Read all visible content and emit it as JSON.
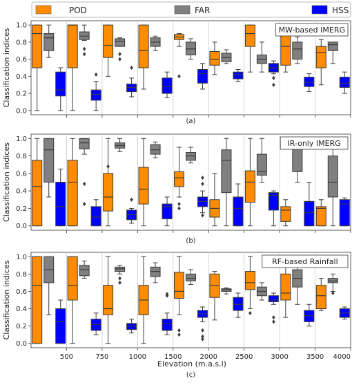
{
  "legend": {
    "items": [
      {
        "name": "POD",
        "color": "#ff8c00"
      },
      {
        "name": "FAR",
        "color": "#808080"
      },
      {
        "name": "HSS",
        "color": "#0000ff"
      }
    ],
    "placement": "top"
  },
  "xlabel": "Elevation (m.a.s.l)",
  "xticks": [
    "500",
    "750",
    "1000",
    "1500",
    "2000",
    "2500",
    "3000",
    "3500",
    "4000"
  ],
  "chart_data": [
    {
      "type": "box",
      "title": "MW-based IMERG",
      "caption": "(a)",
      "ylabel": "Classification indices",
      "ylim": [
        -0.05,
        1.05
      ],
      "yticks": [
        0.0,
        0.2,
        0.4,
        0.6,
        0.8,
        1.0
      ],
      "groups": [
        {
          "POD": {
            "min": 0.0,
            "q1": 0.5,
            "med": 0.9,
            "q3": 1.0,
            "max": 1.0,
            "out": []
          },
          "FAR": {
            "min": 0.62,
            "q1": 0.7,
            "med": 0.85,
            "q3": 0.9,
            "max": 1.0,
            "out": []
          },
          "HSS": {
            "min": 0.0,
            "q1": 0.17,
            "med": 0.24,
            "q3": 0.45,
            "max": 0.5,
            "out": []
          }
        },
        {
          "POD": {
            "min": 0.0,
            "q1": 0.5,
            "med": 1.0,
            "q3": 1.0,
            "max": 1.0,
            "out": []
          },
          "FAR": {
            "min": 0.82,
            "q1": 0.83,
            "med": 0.87,
            "q3": 0.92,
            "max": 1.0,
            "out": [
              0.72,
              0.66
            ]
          },
          "HSS": {
            "min": 0.0,
            "q1": 0.12,
            "med": 0.19,
            "q3": 0.24,
            "max": 0.34,
            "out": [
              0.42
            ]
          }
        },
        {
          "POD": {
            "min": 0.4,
            "q1": 0.62,
            "med": 0.76,
            "q3": 1.0,
            "max": 1.0,
            "out": []
          },
          "FAR": {
            "min": 0.75,
            "q1": 0.75,
            "med": 0.81,
            "q3": 0.84,
            "max": 0.85,
            "out": [
              0.66,
              0.6
            ]
          },
          "HSS": {
            "min": 0.16,
            "q1": 0.22,
            "med": 0.27,
            "q3": 0.31,
            "max": 0.38,
            "out": [
              0.5
            ]
          }
        },
        {
          "POD": {
            "min": 0.25,
            "q1": 0.5,
            "med": 0.7,
            "q3": 1.0,
            "max": 1.0,
            "out": []
          },
          "FAR": {
            "min": 0.7,
            "q1": 0.75,
            "med": 0.8,
            "q3": 0.85,
            "max": 0.87,
            "out": []
          },
          "HSS": {
            "min": 0.15,
            "q1": 0.2,
            "med": 0.28,
            "q3": 0.38,
            "max": 0.45,
            "out": []
          }
        },
        {
          "POD": {
            "min": 0.75,
            "q1": 0.83,
            "med": 0.86,
            "q3": 0.89,
            "max": 0.9,
            "out": [
              0.4
            ]
          },
          "FAR": {
            "min": 0.6,
            "q1": 0.65,
            "med": 0.72,
            "q3": 0.8,
            "max": 0.84,
            "out": []
          },
          "HSS": {
            "min": 0.25,
            "q1": 0.32,
            "med": 0.43,
            "q3": 0.48,
            "max": 0.55,
            "out": []
          }
        },
        {
          "POD": {
            "min": 0.42,
            "q1": 0.53,
            "med": 0.6,
            "q3": 0.69,
            "max": 0.8,
            "out": []
          },
          "FAR": {
            "min": 0.55,
            "q1": 0.57,
            "med": 0.62,
            "q3": 0.67,
            "max": 0.71,
            "out": []
          },
          "HSS": {
            "min": 0.34,
            "q1": 0.37,
            "med": 0.42,
            "q3": 0.45,
            "max": 0.48,
            "out": []
          }
        },
        {
          "POD": {
            "min": 0.45,
            "q1": 0.75,
            "med": 0.9,
            "q3": 1.0,
            "max": 1.0,
            "out": []
          },
          "FAR": {
            "min": 0.45,
            "q1": 0.55,
            "med": 0.6,
            "q3": 0.65,
            "max": 0.8,
            "out": []
          },
          "HSS": {
            "min": 0.43,
            "q1": 0.45,
            "med": 0.5,
            "q3": 0.55,
            "max": 0.58,
            "out": [
              0.38,
              0.3
            ]
          }
        },
        {
          "POD": {
            "min": 0.45,
            "q1": 0.53,
            "med": 0.75,
            "q3": 0.9,
            "max": 1.0,
            "out": []
          },
          "FAR": {
            "min": 0.55,
            "q1": 0.6,
            "med": 0.72,
            "q3": 0.8,
            "max": 0.86,
            "out": []
          },
          "HSS": {
            "min": 0.22,
            "q1": 0.28,
            "med": 0.33,
            "q3": 0.39,
            "max": 0.43,
            "out": []
          }
        },
        {
          "POD": {
            "min": 0.3,
            "q1": 0.5,
            "med": 0.68,
            "q3": 0.75,
            "max": 0.83,
            "out": []
          },
          "FAR": {
            "min": 0.55,
            "q1": 0.7,
            "med": 0.77,
            "q3": 0.8,
            "max": 0.8,
            "out": []
          },
          "HSS": {
            "min": 0.2,
            "q1": 0.27,
            "med": 0.32,
            "q3": 0.39,
            "max": 0.45,
            "out": []
          }
        }
      ]
    },
    {
      "type": "box",
      "title": "IR-only IMERG",
      "caption": "(b)",
      "ylabel": "Classification indices",
      "ylim": [
        -0.05,
        1.05
      ],
      "yticks": [
        0.0,
        0.2,
        0.4,
        0.6,
        0.8,
        1.0
      ],
      "groups": [
        {
          "POD": {
            "min": 0.0,
            "q1": 0.0,
            "med": 0.45,
            "q3": 0.75,
            "max": 1.0,
            "out": []
          },
          "FAR": {
            "min": 0.33,
            "q1": 0.5,
            "med": 0.87,
            "q3": 1.0,
            "max": 1.0,
            "out": []
          },
          "HSS": {
            "min": 0.0,
            "q1": 0.0,
            "med": 0.22,
            "q3": 0.5,
            "max": 0.65,
            "out": []
          }
        },
        {
          "POD": {
            "min": 0.0,
            "q1": 0.0,
            "med": 0.5,
            "q3": 0.75,
            "max": 1.0,
            "out": []
          },
          "FAR": {
            "min": 0.82,
            "q1": 0.88,
            "med": 0.95,
            "q3": 1.0,
            "max": 1.0,
            "out": [
              0.48,
              0.25
            ]
          },
          "HSS": {
            "min": 0.0,
            "q1": 0.0,
            "med": 0.1,
            "q3": 0.22,
            "max": 0.3,
            "out": []
          }
        },
        {
          "POD": {
            "min": 0.0,
            "q1": 0.17,
            "med": 0.33,
            "q3": 0.6,
            "max": 1.0,
            "out": [
              0.68
            ]
          },
          "FAR": {
            "min": 0.85,
            "q1": 0.89,
            "med": 0.92,
            "q3": 0.95,
            "max": 1.0,
            "out": []
          },
          "HSS": {
            "min": 0.03,
            "q1": 0.07,
            "med": 0.13,
            "q3": 0.18,
            "max": 0.2,
            "out": [
              0.3
            ]
          }
        },
        {
          "POD": {
            "min": 0.0,
            "q1": 0.25,
            "med": 0.42,
            "q3": 0.67,
            "max": 1.0,
            "out": []
          },
          "FAR": {
            "min": 0.78,
            "q1": 0.82,
            "med": 0.87,
            "q3": 0.93,
            "max": 0.96,
            "out": []
          },
          "HSS": {
            "min": 0.0,
            "q1": 0.08,
            "med": 0.22,
            "q3": 0.25,
            "max": 0.33,
            "out": []
          }
        },
        {
          "POD": {
            "min": 0.33,
            "q1": 0.45,
            "med": 0.55,
            "q3": 0.62,
            "max": 0.9,
            "out": [
              0.25,
              0.2
            ]
          },
          "FAR": {
            "min": 0.72,
            "q1": 0.75,
            "med": 0.8,
            "q3": 0.84,
            "max": 0.9,
            "out": []
          },
          "HSS": {
            "min": 0.15,
            "q1": 0.22,
            "med": 0.28,
            "q3": 0.33,
            "max": 0.4,
            "out": [
              0.48,
              0.55,
              0.12
            ]
          }
        },
        {
          "POD": {
            "min": 0.0,
            "q1": 0.1,
            "med": 0.2,
            "q3": 0.3,
            "max": 0.6,
            "out": []
          },
          "FAR": {
            "min": 0.0,
            "q1": 0.38,
            "med": 0.75,
            "q3": 0.87,
            "max": 1.0,
            "out": []
          },
          "HSS": {
            "min": 0.0,
            "q1": 0.0,
            "med": 0.2,
            "q3": 0.33,
            "max": 0.48,
            "out": []
          }
        },
        {
          "POD": {
            "min": 0.0,
            "q1": 0.27,
            "med": 0.5,
            "q3": 0.63,
            "max": 1.0,
            "out": []
          },
          "FAR": {
            "min": 0.5,
            "q1": 0.58,
            "med": 0.62,
            "q3": 0.82,
            "max": 1.0,
            "out": []
          },
          "HSS": {
            "min": 0.0,
            "q1": 0.18,
            "med": 0.35,
            "q3": 0.38,
            "max": 0.4,
            "out": []
          }
        },
        {
          "POD": {
            "min": 0.0,
            "q1": 0.05,
            "med": 0.18,
            "q3": 0.22,
            "max": 0.3,
            "out": []
          },
          "FAR": {
            "min": 0.5,
            "q1": 0.62,
            "med": 1.0,
            "q3": 1.0,
            "max": 1.0,
            "out": []
          },
          "HSS": {
            "min": 0.0,
            "q1": 0.0,
            "med": 0.15,
            "q3": 0.28,
            "max": 0.5,
            "out": []
          }
        },
        {
          "POD": {
            "min": 0.0,
            "q1": 0.0,
            "med": 0.2,
            "q3": 0.22,
            "max": 0.3,
            "out": []
          },
          "FAR": {
            "min": 0.0,
            "q1": 0.33,
            "med": 0.5,
            "q3": 0.8,
            "max": 1.0,
            "out": []
          },
          "HSS": {
            "min": 0.0,
            "q1": 0.0,
            "med": 0.25,
            "q3": 0.3,
            "max": 0.32,
            "out": []
          }
        }
      ]
    },
    {
      "type": "box",
      "title": "RF-based Rainfall",
      "caption": "(c)",
      "ylabel": "Classification indices",
      "ylim": [
        -0.05,
        1.05
      ],
      "yticks": [
        0.0,
        0.2,
        0.4,
        0.6,
        0.8,
        1.0
      ],
      "groups": [
        {
          "POD": {
            "min": 0.0,
            "q1": 0.0,
            "med": 0.67,
            "q3": 1.0,
            "max": 1.0,
            "out": []
          },
          "FAR": {
            "min": 0.33,
            "q1": 0.7,
            "med": 0.85,
            "q3": 1.0,
            "max": 1.0,
            "out": []
          },
          "HSS": {
            "min": 0.0,
            "q1": 0.0,
            "med": 0.25,
            "q3": 0.4,
            "max": 0.5,
            "out": []
          }
        },
        {
          "POD": {
            "min": 0.0,
            "q1": 0.5,
            "med": 0.67,
            "q3": 1.0,
            "max": 1.0,
            "out": []
          },
          "FAR": {
            "min": 0.75,
            "q1": 0.78,
            "med": 0.85,
            "q3": 0.9,
            "max": 0.95,
            "out": []
          },
          "HSS": {
            "min": 0.1,
            "q1": 0.15,
            "med": 0.22,
            "q3": 0.28,
            "max": 0.35,
            "out": []
          }
        },
        {
          "POD": {
            "min": 0.0,
            "q1": 0.33,
            "med": 0.4,
            "q3": 0.67,
            "max": 1.0,
            "out": []
          },
          "FAR": {
            "min": 0.8,
            "q1": 0.83,
            "med": 0.86,
            "q3": 0.88,
            "max": 0.9,
            "out": [
              0.75,
              0.7
            ]
          },
          "HSS": {
            "min": 0.12,
            "q1": 0.16,
            "med": 0.2,
            "q3": 0.23,
            "max": 0.28,
            "out": []
          }
        },
        {
          "POD": {
            "min": 0.0,
            "q1": 0.33,
            "med": 0.5,
            "q3": 0.67,
            "max": 1.0,
            "out": []
          },
          "FAR": {
            "min": 0.7,
            "q1": 0.77,
            "med": 0.83,
            "q3": 0.88,
            "max": 0.93,
            "out": []
          },
          "HSS": {
            "min": 0.1,
            "q1": 0.15,
            "med": 0.23,
            "q3": 0.28,
            "max": 0.35,
            "out": [
              0.55,
              0.57
            ]
          }
        },
        {
          "POD": {
            "min": 0.33,
            "q1": 0.52,
            "med": 0.6,
            "q3": 0.82,
            "max": 1.0,
            "out": [
              0.15,
              0.1
            ]
          },
          "FAR": {
            "min": 0.68,
            "q1": 0.72,
            "med": 0.75,
            "q3": 0.8,
            "max": 0.85,
            "out": []
          },
          "HSS": {
            "min": 0.25,
            "q1": 0.3,
            "med": 0.34,
            "q3": 0.38,
            "max": 0.42,
            "out": [
              0.15,
              0.08,
              0.05
            ]
          }
        },
        {
          "POD": {
            "min": 0.27,
            "q1": 0.53,
            "med": 0.67,
            "q3": 0.8,
            "max": 0.83,
            "out": []
          },
          "FAR": {
            "min": 0.57,
            "q1": 0.6,
            "med": 0.62,
            "q3": 0.63,
            "max": 0.64,
            "out": []
          },
          "HSS": {
            "min": 0.3,
            "q1": 0.38,
            "med": 0.45,
            "q3": 0.53,
            "max": 0.58,
            "out": []
          }
        },
        {
          "POD": {
            "min": 0.4,
            "q1": 0.62,
            "med": 0.7,
            "q3": 0.83,
            "max": 1.0,
            "out": [
              0.35
            ]
          },
          "FAR": {
            "min": 0.5,
            "q1": 0.55,
            "med": 0.6,
            "q3": 0.65,
            "max": 0.7,
            "out": []
          },
          "HSS": {
            "min": 0.45,
            "q1": 0.48,
            "med": 0.5,
            "q3": 0.55,
            "max": 0.58,
            "out": [
              0.3,
              0.25
            ]
          }
        },
        {
          "POD": {
            "min": 0.3,
            "q1": 0.5,
            "med": 0.58,
            "q3": 0.8,
            "max": 1.0,
            "out": []
          },
          "FAR": {
            "min": 0.45,
            "q1": 0.65,
            "med": 0.75,
            "q3": 0.85,
            "max": 1.0,
            "out": []
          },
          "HSS": {
            "min": 0.2,
            "q1": 0.25,
            "med": 0.32,
            "q3": 0.38,
            "max": 0.45,
            "out": []
          }
        },
        {
          "POD": {
            "min": 0.38,
            "q1": 0.4,
            "med": 0.55,
            "q3": 0.67,
            "max": 0.75,
            "out": []
          },
          "FAR": {
            "min": 0.6,
            "q1": 0.7,
            "med": 0.72,
            "q3": 0.75,
            "max": 0.8,
            "out": [
              0.58
            ]
          },
          "HSS": {
            "min": 0.28,
            "q1": 0.3,
            "med": 0.35,
            "q3": 0.4,
            "max": 0.42,
            "out": []
          }
        }
      ]
    }
  ]
}
